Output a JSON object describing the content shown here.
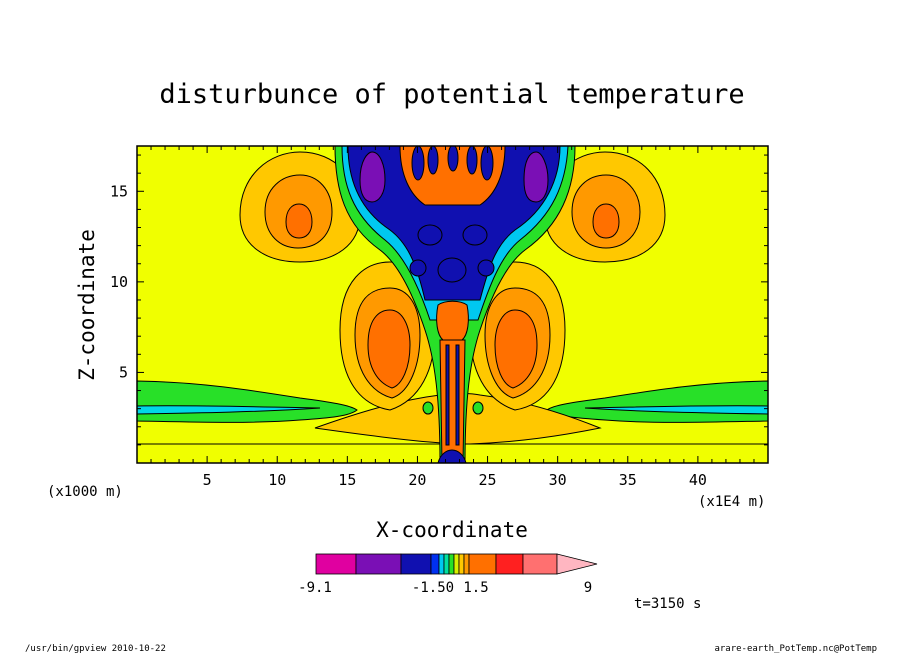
{
  "chart_data": {
    "type": "heatmap",
    "title": "disturbunce of potential temperature",
    "xlabel": "X-coordinate",
    "ylabel": "Z-coordinate",
    "x_unit_left": "(x1000 m)",
    "x_unit_right": "(x1E4 m)",
    "xlim": [
      0,
      45
    ],
    "ylim": [
      0,
      17.5
    ],
    "xticks": [
      5,
      10,
      15,
      20,
      25,
      30,
      35,
      40
    ],
    "yticks": [
      5,
      10,
      15
    ],
    "time_label": "t=3150 s",
    "colorbar": {
      "labels": [
        "-9.1",
        "-1.50",
        "1.5",
        "9"
      ],
      "colors": [
        "#e000a0",
        "#7a0fb5",
        "#1010b0",
        "#0030f0",
        "#00c8f0",
        "#00e0a0",
        "#28e028",
        "#d8f000",
        "#ffc800",
        "#ff9900",
        "#ff7000",
        "#ff2020",
        "#ff7070",
        "#ffb6c1"
      ],
      "min": -9.1,
      "max": 9
    },
    "background_color": "#f0ff00"
  },
  "footer": {
    "left": "/usr/bin/gpview   2010-10-22",
    "right": "arare-earth_PotTemp.nc@PotTemp"
  }
}
